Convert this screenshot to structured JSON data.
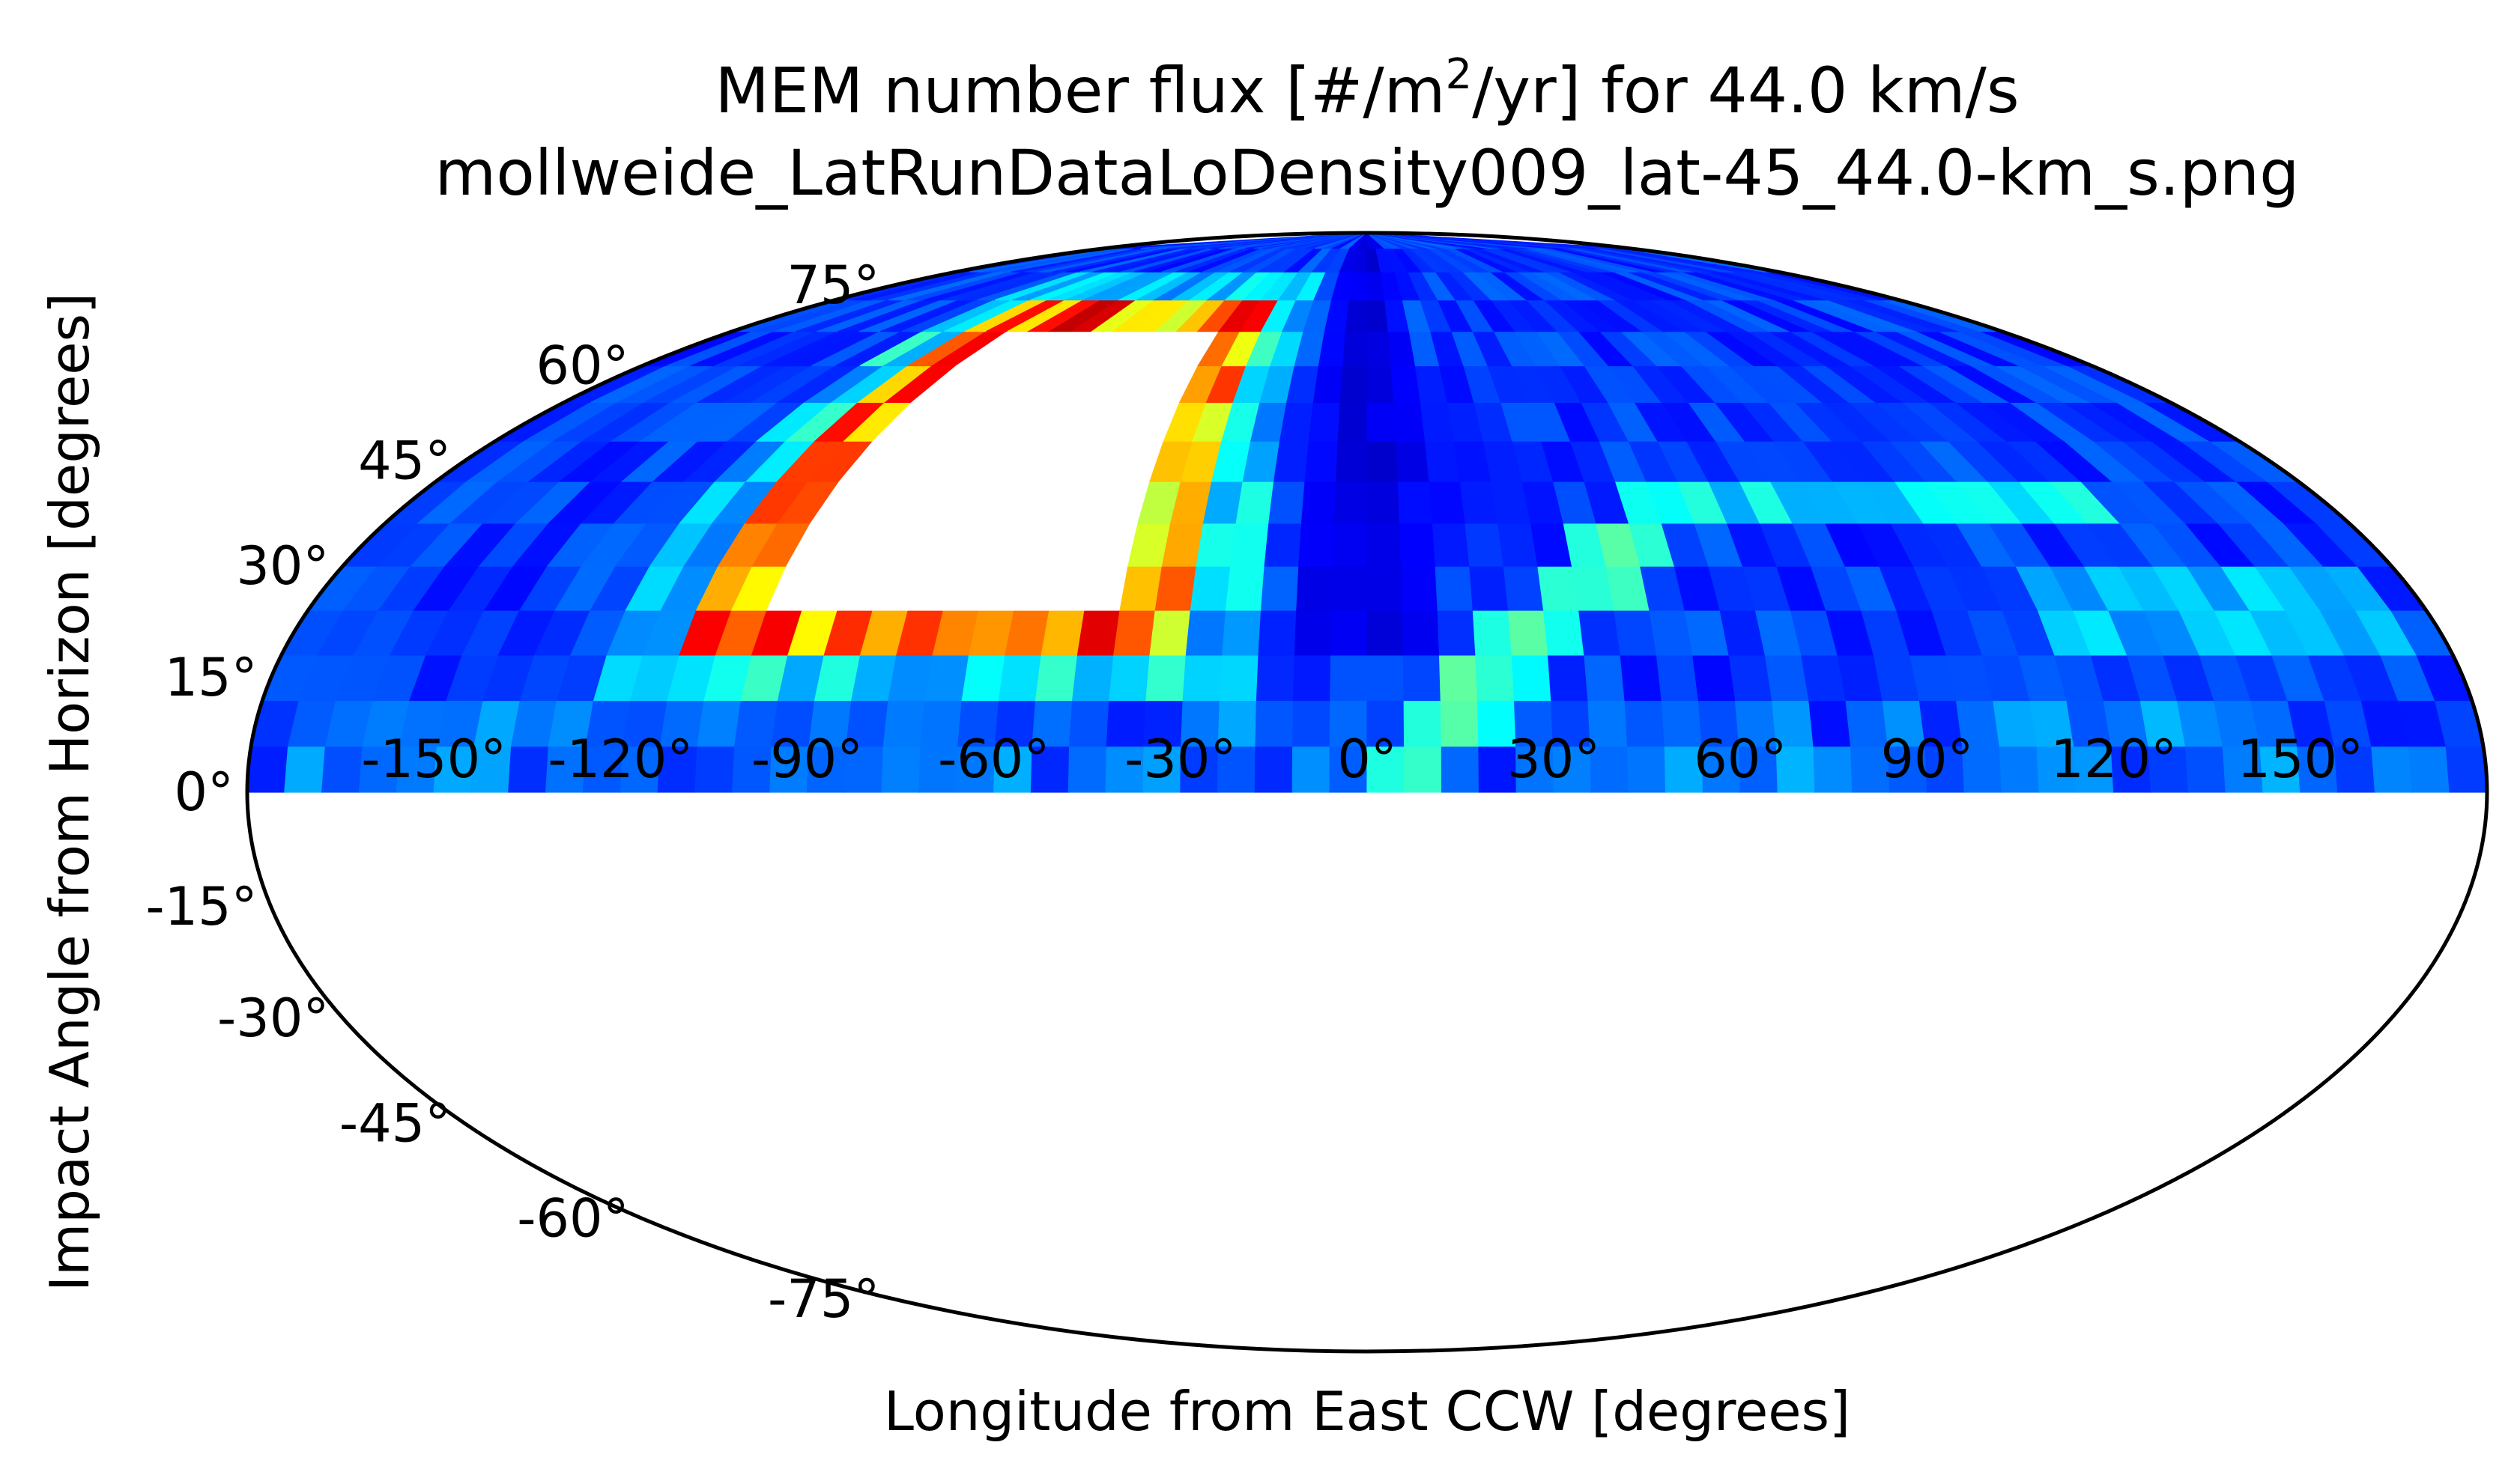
{
  "chart_data": {
    "type": "heatmap",
    "projection": "mollweide",
    "title_line1_prefix": "MEM number flux [#/m",
    "title_line1_sup": "2",
    "title_line1_suffix": "/yr] for 44.0 km/s",
    "title_line2": "mollweide_LatRunDataLoDensity009_lat-45_44.0-km_s.png",
    "xlabel": "Longitude from East CCW [degrees]",
    "ylabel": "Impact Angle from Horizon [degrees]",
    "xlim": [
      -180,
      180
    ],
    "ylim": [
      -90,
      90
    ],
    "data_extent_lat": [
      0,
      90
    ],
    "colormap": "jet",
    "saturated_color": "#ffffff",
    "grid": false,
    "x_ticks": [
      {
        "value": -150,
        "label": "-150°"
      },
      {
        "value": -120,
        "label": "-120°"
      },
      {
        "value": -90,
        "label": "-90°"
      },
      {
        "value": -60,
        "label": "-60°"
      },
      {
        "value": -30,
        "label": "-30°"
      },
      {
        "value": 0,
        "label": "0°"
      },
      {
        "value": 30,
        "label": "30°"
      },
      {
        "value": 60,
        "label": "60°"
      },
      {
        "value": 90,
        "label": "90°"
      },
      {
        "value": 120,
        "label": "120°"
      },
      {
        "value": 150,
        "label": "150°"
      }
    ],
    "y_ticks": [
      {
        "value": 75,
        "label": "75°"
      },
      {
        "value": 60,
        "label": "60°"
      },
      {
        "value": 45,
        "label": "45°"
      },
      {
        "value": 30,
        "label": "30°"
      },
      {
        "value": 15,
        "label": "15°"
      },
      {
        "value": 0,
        "label": "0°"
      },
      {
        "value": -15,
        "label": "-15°"
      },
      {
        "value": -30,
        "label": "-30°"
      },
      {
        "value": -45,
        "label": "-45°"
      },
      {
        "value": -60,
        "label": "-60°"
      },
      {
        "value": -75,
        "label": "-75°"
      }
    ],
    "bin_size_deg": [
      6,
      6
    ],
    "background_level": 0.13,
    "features": [
      {
        "kind": "hotspot",
        "lon_range": [
          -104,
          -40
        ],
        "lat_range": [
          24,
          66
        ],
        "level": 1.2
      },
      {
        "kind": "hot_rim",
        "lon_range": [
          -112,
          -30
        ],
        "lat_range": [
          18,
          72
        ],
        "level": 0.85
      },
      {
        "kind": "warm_halo",
        "lon_range": [
          -125,
          -20
        ],
        "lat_range": [
          10,
          80
        ],
        "level": 0.4
      },
      {
        "kind": "streak",
        "points": [
          [
            3,
            1
          ],
          [
            12,
            8
          ],
          [
            22,
            16
          ],
          [
            32,
            24
          ],
          [
            42,
            31
          ],
          [
            52,
            36
          ]
        ],
        "level": 0.45
      },
      {
        "kind": "band",
        "lon_range": [
          55,
          135
        ],
        "lat": 40,
        "level": 0.38
      },
      {
        "kind": "band",
        "lon_range": [
          115,
          175
        ],
        "lat": 24,
        "level": 0.33
      },
      {
        "kind": "low_valley",
        "lon": 0,
        "lat_range": [
          20,
          90
        ],
        "level": 0.06
      }
    ]
  }
}
